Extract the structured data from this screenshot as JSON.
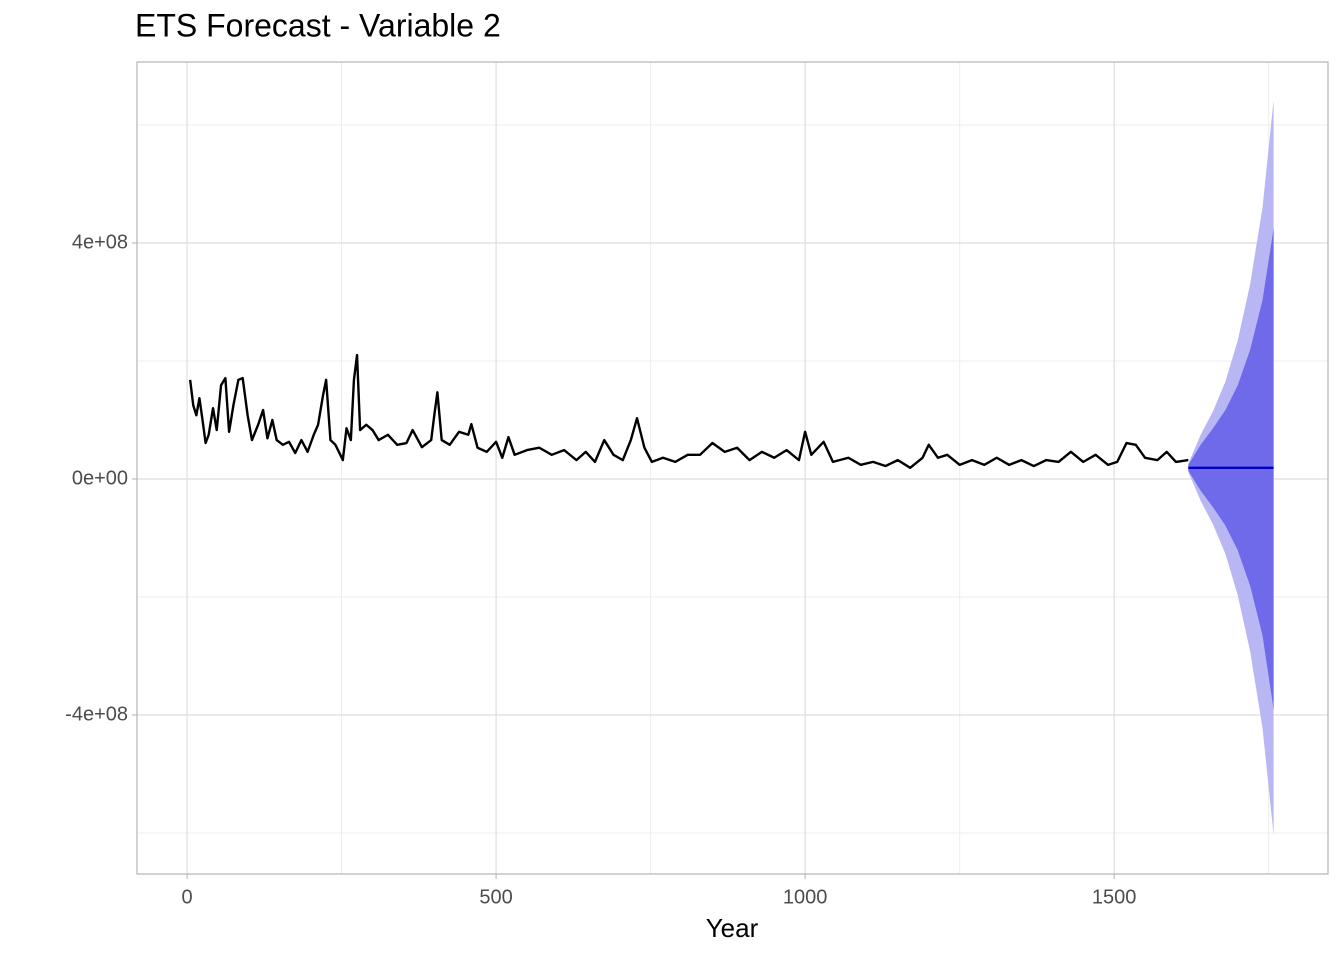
{
  "chart_data": {
    "type": "line",
    "title": "ETS Forecast - Variable 2",
    "x_label": "Year",
    "xlim": [
      -81,
      1846
    ],
    "ylim": [
      -669500000,
      706800000
    ],
    "xticks": [
      0,
      500,
      1000,
      1500
    ],
    "x_minor_ticks": [
      250,
      750,
      1250,
      1750
    ],
    "yticks": [
      {
        "value": -400000000,
        "label": "-4e+08"
      },
      {
        "value": 0,
        "label": "0e+00"
      },
      {
        "value": 400000000,
        "label": "4e+08"
      }
    ],
    "y_minor_ticks": [
      -600000000,
      -200000000,
      200000000,
      600000000
    ],
    "grid": true,
    "color": "#000000",
    "x": [
      5,
      10,
      15,
      20,
      25,
      30,
      35,
      42,
      48,
      55,
      62,
      68,
      75,
      83,
      90,
      98,
      105,
      115,
      123,
      130,
      138,
      145,
      155,
      165,
      175,
      185,
      195,
      205,
      212,
      220,
      225,
      232,
      240,
      248,
      252,
      258,
      265,
      270,
      275,
      280,
      290,
      300,
      310,
      325,
      340,
      355,
      365,
      380,
      395,
      400,
      405,
      412,
      425,
      440,
      455,
      460,
      470,
      485,
      500,
      510,
      520,
      530,
      550,
      570,
      590,
      610,
      630,
      645,
      660,
      675,
      690,
      705,
      718,
      728,
      740,
      752,
      770,
      790,
      810,
      830,
      850,
      870,
      890,
      910,
      930,
      950,
      970,
      990,
      1000,
      1010,
      1030,
      1045,
      1070,
      1090,
      1110,
      1130,
      1150,
      1170,
      1190,
      1200,
      1215,
      1230,
      1250,
      1270,
      1290,
      1310,
      1330,
      1350,
      1370,
      1390,
      1410,
      1430,
      1450,
      1470,
      1490,
      1505,
      1520,
      1535,
      1550,
      1570,
      1585,
      1600,
      1620
    ],
    "values": [
      168000000,
      125000000,
      108000000,
      137000000,
      100000000,
      61000000,
      75000000,
      120000000,
      83000000,
      159000000,
      171000000,
      80000000,
      125000000,
      168000000,
      171000000,
      108000000,
      66000000,
      92000000,
      117000000,
      69000000,
      100000000,
      66000000,
      58000000,
      63000000,
      44000000,
      66000000,
      46000000,
      75000000,
      92000000,
      142000000,
      168000000,
      66000000,
      58000000,
      41000000,
      32000000,
      86000000,
      66000000,
      168000000,
      210000000,
      83000000,
      92000000,
      83000000,
      66000000,
      75000000,
      58000000,
      61000000,
      83000000,
      54000000,
      66000000,
      108000000,
      147000000,
      66000000,
      58000000,
      80000000,
      75000000,
      93000000,
      53000000,
      46000000,
      63000000,
      36000000,
      71000000,
      41000000,
      49000000,
      53000000,
      41000000,
      49000000,
      32000000,
      46000000,
      29000000,
      66000000,
      41000000,
      32000000,
      66000000,
      103000000,
      53000000,
      29000000,
      36000000,
      29000000,
      41000000,
      41000000,
      61000000,
      46000000,
      53000000,
      32000000,
      46000000,
      36000000,
      49000000,
      32000000,
      80000000,
      41000000,
      63000000,
      29000000,
      36000000,
      24000000,
      29000000,
      22000000,
      32000000,
      19000000,
      36000000,
      58000000,
      36000000,
      41000000,
      24000000,
      32000000,
      24000000,
      36000000,
      24000000,
      32000000,
      22000000,
      32000000,
      29000000,
      46000000,
      29000000,
      41000000,
      24000000,
      29000000,
      61000000,
      58000000,
      36000000,
      32000000,
      46000000,
      29000000,
      32000000
    ],
    "forecast": {
      "x": [
        1620,
        1640,
        1660,
        1680,
        1700,
        1720,
        1740,
        1758
      ],
      "mean": [
        19000000,
        19000000,
        19000000,
        19000000,
        19000000,
        19000000,
        19000000,
        19000000
      ],
      "hi80": [
        24000000,
        58000000,
        86000000,
        117000000,
        159000000,
        219000000,
        303000000,
        425000000
      ],
      "lo80": [
        14000000,
        -20000000,
        -48000000,
        -79000000,
        -121000000,
        -181000000,
        -265000000,
        -391000000
      ],
      "hi95": [
        26000000,
        75000000,
        115000000,
        165000000,
        235000000,
        330000000,
        460000000,
        642000000
      ],
      "lo95": [
        12000000,
        -37000000,
        -77000000,
        -127000000,
        -197000000,
        -292000000,
        -422000000,
        -603000000
      ],
      "color": "#0000cc",
      "color80": "#6f6aea",
      "color95": "#b9b7f3"
    }
  }
}
